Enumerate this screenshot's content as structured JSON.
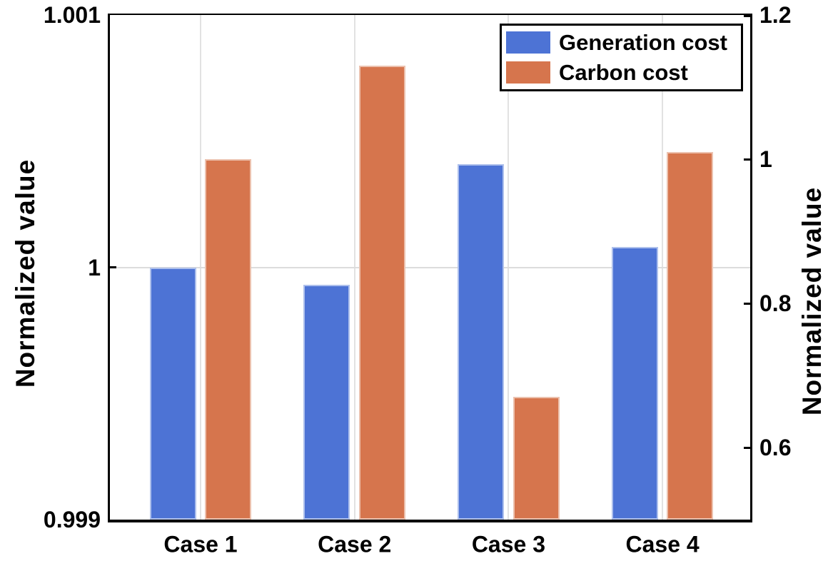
{
  "chart_data": {
    "type": "bar",
    "title": "",
    "categories": [
      "Case 1",
      "Case 2",
      "Case 3",
      "Case 4"
    ],
    "series": [
      {
        "name": "Generation cost",
        "axis": "left",
        "color": "#4D73D5",
        "values": [
          1.0,
          0.99993,
          1.00041,
          1.00008
        ]
      },
      {
        "name": "Carbon cost",
        "axis": "right",
        "color": "#D6754D",
        "values": [
          1.0,
          1.13,
          0.67,
          1.01
        ]
      }
    ],
    "left_axis": {
      "label": "Normalized value",
      "range": [
        0.999,
        1.001
      ],
      "ticks": [
        {
          "value": 1.001,
          "label": "1.001"
        },
        {
          "value": 1.0,
          "label": "1"
        },
        {
          "value": 0.999,
          "label": "0.999"
        }
      ]
    },
    "right_axis": {
      "label": "Normalized value",
      "range": [
        0.5,
        1.2
      ],
      "ticks": [
        {
          "value": 1.2,
          "label": "1.2"
        },
        {
          "value": 1.0,
          "label": "1"
        },
        {
          "value": 0.8,
          "label": "0.8"
        },
        {
          "value": 0.6,
          "label": "0.6"
        }
      ]
    },
    "grid": {
      "vertical_at_category_centers": true,
      "horizontal_at_left_values": [
        1.0
      ]
    },
    "legend": {
      "position": "top-right",
      "entries": [
        "Generation cost",
        "Carbon cost"
      ]
    }
  }
}
